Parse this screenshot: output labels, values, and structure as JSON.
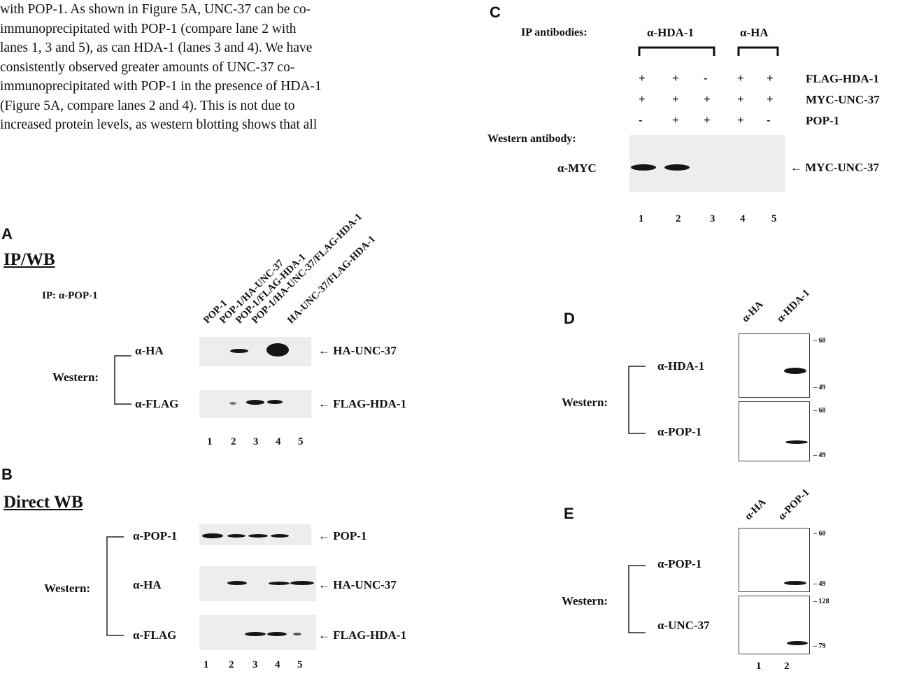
{
  "paragraph": {
    "lines": [
      "with POP-1. As shown in Figure 5A, UNC-37 can be co-",
      "immunoprecipitated with POP-1 (compare lane 2 with",
      "lanes 1, 3 and 5), as can HDA-1 (lanes 3 and 4). We have",
      "consistently observed greater amounts of UNC-37 co-",
      "immunoprecipitated with POP-1 in the presence of HDA-1",
      "(Figure 5A, compare lanes 2 and 4). This is not due to",
      "increased protein levels, as western blotting shows that all"
    ]
  },
  "panel_a": {
    "letter": "A",
    "heading": "IP/WB",
    "ip_label": "IP: α-POP-1",
    "lane_labels": [
      "POP-1",
      "POP-1/HA-UNC-37",
      "POP-1/FLAG-HDA-1",
      "POP-1/HA-UNC-37/FLAG-HDA-1",
      "HA-UNC-37/FLAG-HDA-1"
    ],
    "group_label": "Western:",
    "rows": [
      {
        "antibody": "α-HA",
        "target": "HA-UNC-37"
      },
      {
        "antibody": "α-FLAG",
        "target": "FLAG-HDA-1"
      }
    ],
    "lane_numbers": [
      "1",
      "2",
      "3",
      "4",
      "5"
    ]
  },
  "panel_b": {
    "letter": "B",
    "heading": "Direct WB",
    "group_label": "Western:",
    "rows": [
      {
        "antibody": "α-POP-1",
        "target": "POP-1"
      },
      {
        "antibody": "α-HA",
        "target": "HA-UNC-37"
      },
      {
        "antibody": "α-FLAG",
        "target": "FLAG-HDA-1"
      }
    ],
    "lane_numbers": [
      "1",
      "2",
      "3",
      "4",
      "5"
    ]
  },
  "panel_c": {
    "letter": "C",
    "ip_label": "IP antibodies:",
    "ip_groups": [
      "α-HDA-1",
      "α-HA"
    ],
    "conditions": [
      {
        "name": "FLAG-HDA-1",
        "signs": [
          "+",
          "+",
          "-",
          "+",
          "+"
        ]
      },
      {
        "name": "MYC-UNC-37",
        "signs": [
          "+",
          "+",
          "+",
          "+",
          "+"
        ]
      },
      {
        "name": "POP-1",
        "signs": [
          "-",
          "+",
          "+",
          "+",
          "-"
        ]
      }
    ],
    "western_label": "Western antibody:",
    "antibody": "α-MYC",
    "target": "MYC-UNC-37",
    "lane_numbers": [
      "1",
      "2",
      "3",
      "4",
      "5"
    ]
  },
  "panel_d": {
    "letter": "D",
    "lane_labels": [
      "α-HA",
      "α-HDA-1"
    ],
    "group_label": "Western:",
    "rows": [
      {
        "antibody": "α-HDA-1",
        "markers": [
          "60",
          "49"
        ]
      },
      {
        "antibody": "α-POP-1",
        "markers": [
          "60",
          "49"
        ]
      }
    ]
  },
  "panel_e": {
    "letter": "E",
    "lane_labels": [
      "α-HA",
      "α-POP-1"
    ],
    "group_label": "Western:",
    "rows": [
      {
        "antibody": "α-POP-1",
        "markers": [
          "60",
          "49"
        ]
      },
      {
        "antibody": "α-UNC-37",
        "markers": [
          "128",
          "79"
        ]
      }
    ],
    "lane_numbers": [
      "1",
      "2"
    ]
  }
}
